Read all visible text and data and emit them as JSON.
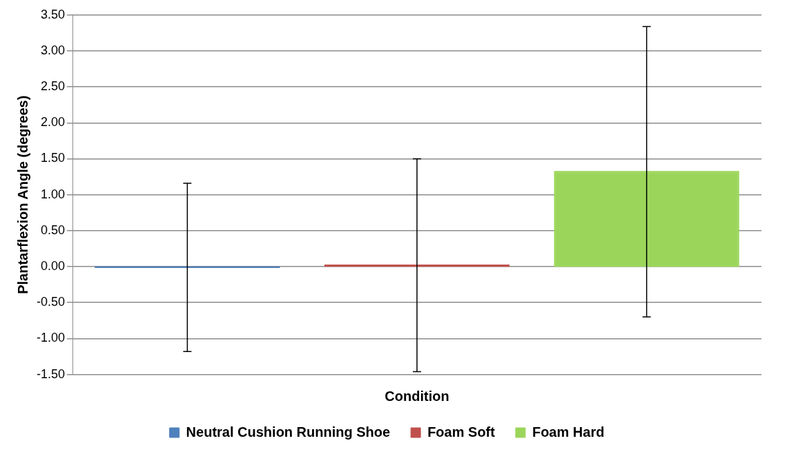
{
  "chart_data": {
    "type": "bar",
    "xlabel": "Condition",
    "ylabel": "Plantarflexion Angle (degrees)",
    "categories": [
      null,
      null,
      null
    ],
    "series": [
      {
        "name": "Neutral Cushion Running Shoe",
        "color": "#4f81bd",
        "values": [
          -0.01,
          null,
          null
        ],
        "errors": [
          1.17,
          null,
          null
        ]
      },
      {
        "name": "Foam Soft",
        "color": "#c0504d",
        "values": [
          null,
          0.02,
          null
        ],
        "errors": [
          null,
          1.48,
          null
        ]
      },
      {
        "name": "Foam Hard",
        "color": "#9bd65a",
        "values": [
          null,
          null,
          1.32
        ],
        "errors": [
          null,
          null,
          2.02
        ]
      }
    ],
    "ylim": [
      -1.5,
      3.5
    ],
    "yticks": [
      {
        "value": -1.5,
        "label": "-1.50"
      },
      {
        "value": -1,
        "label": "-1.00"
      },
      {
        "value": -0.5,
        "label": "-0.50"
      },
      {
        "value": 0,
        "label": "0.00"
      },
      {
        "value": 0.5,
        "label": "0.50"
      },
      {
        "value": 1,
        "label": "1.00"
      },
      {
        "value": 1.5,
        "label": "1.50"
      },
      {
        "value": 2,
        "label": "2.00"
      },
      {
        "value": 2.5,
        "label": "2.50"
      },
      {
        "value": 3,
        "label": "3.00"
      },
      {
        "value": 3.5,
        "label": "3.50"
      }
    ],
    "grid": "y",
    "legend": "bottom"
  }
}
